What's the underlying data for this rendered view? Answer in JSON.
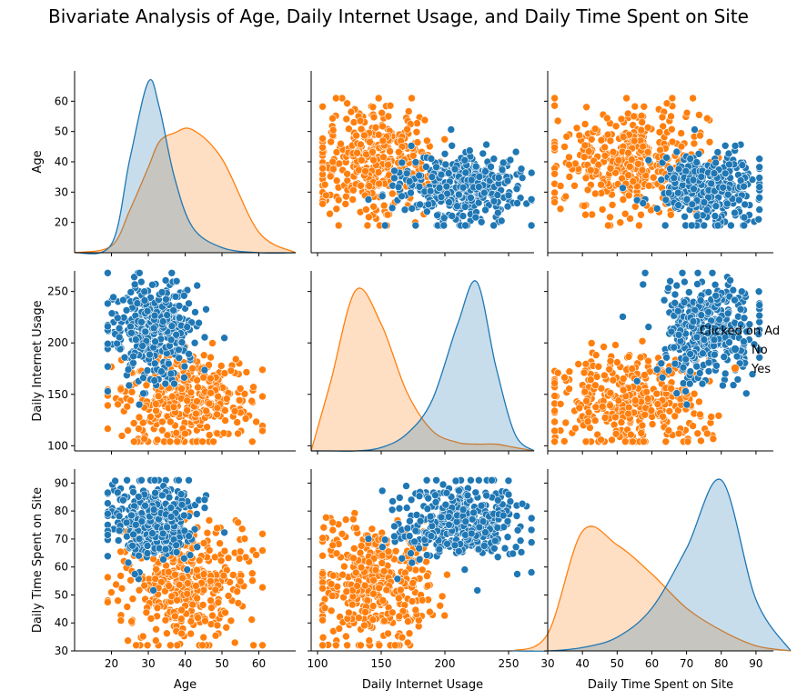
{
  "figure": {
    "title": "Bivariate Analysis of Age, Daily Internet Usage, and Daily Time Spent on Site"
  },
  "colors": {
    "No": "#1f77b4",
    "Yes": "#ff7f0e",
    "axis": "#000000"
  },
  "chart_data": {
    "type": "scatter",
    "subtype": "pairplot",
    "variables": [
      "Age",
      "Daily Internet Usage",
      "Daily Time Spent on Site"
    ],
    "hue": {
      "title": "Clicked on Ad",
      "levels": [
        "No",
        "Yes"
      ]
    },
    "axes": {
      "Age": {
        "label": "Age",
        "range": [
          10,
          70
        ],
        "ticks": [
          20,
          30,
          40,
          50,
          60
        ]
      },
      "Daily Internet Usage": {
        "label": "Daily Internet Usage",
        "range": [
          95,
          270
        ],
        "ticks": [
          100,
          150,
          200,
          250
        ]
      },
      "Daily Time Spent on Site": {
        "label": "Daily Time Spent on Site",
        "range": [
          30,
          95
        ],
        "ticks": [
          30,
          40,
          50,
          60,
          70,
          80,
          90
        ]
      }
    },
    "diagonal_kde_x": {
      "Age": {
        "x": [
          10,
          20,
          25,
          30,
          33,
          37,
          42,
          50,
          60,
          70
        ]
      },
      "Daily Internet Usage": {
        "x": [
          95,
          110,
          130,
          150,
          170,
          190,
          210,
          225,
          240,
          255,
          270
        ]
      },
      "Daily Time Spent on Site": {
        "x": [
          20,
          30,
          40,
          50,
          60,
          70,
          80,
          90,
          100
        ]
      }
    },
    "diagonal_kde": {
      "Age": {
        "No": [
          0,
          0.05,
          0.55,
          1.0,
          0.85,
          0.45,
          0.15,
          0.03,
          0,
          0
        ],
        "Yes": [
          0,
          0.04,
          0.25,
          0.5,
          0.65,
          0.7,
          0.72,
          0.55,
          0.12,
          0
        ]
      },
      "Daily Internet Usage": {
        "No": [
          0,
          0,
          0,
          0.02,
          0.1,
          0.3,
          0.75,
          1.0,
          0.5,
          0.1,
          0
        ],
        "Yes": [
          0,
          0.4,
          0.95,
          0.75,
          0.35,
          0.12,
          0.05,
          0.04,
          0.04,
          0.02,
          0
        ]
      },
      "Daily Time Spent on Site": {
        "No": [
          0,
          0,
          0.02,
          0.08,
          0.25,
          0.6,
          1.0,
          0.3,
          0
        ],
        "Yes": [
          0,
          0.1,
          0.7,
          0.62,
          0.45,
          0.25,
          0.12,
          0.03,
          0
        ]
      }
    },
    "clusters": {
      "No": {
        "Age": {
          "mean": 31,
          "sd": 6,
          "min": 19,
          "max": 53
        },
        "Daily Internet Usage": {
          "mean": 214,
          "sd": 24,
          "min": 140,
          "max": 268
        },
        "Daily Time Spent on Site": {
          "mean": 76,
          "sd": 7,
          "min": 51,
          "max": 91
        }
      },
      "Yes": {
        "Age": {
          "mean": 40,
          "sd": 9,
          "min": 19,
          "max": 61
        },
        "Daily Internet Usage": {
          "mean": 145,
          "sd": 24,
          "min": 104,
          "max": 230
        },
        "Daily Time Spent on Site": {
          "mean": 53,
          "sd": 11,
          "min": 32,
          "max": 91
        }
      }
    },
    "points_per_group": 380,
    "grid": false,
    "legend_position": "right"
  }
}
